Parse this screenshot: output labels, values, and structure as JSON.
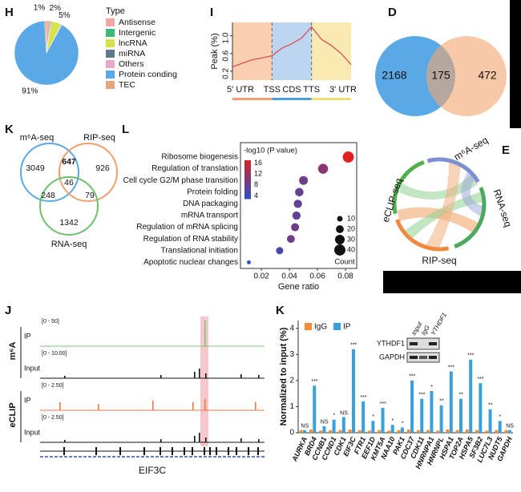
{
  "chart_data": [
    {
      "type": "pie",
      "label": "H",
      "legend_title": "Type",
      "categories": [
        "Antisense",
        "Intergenic",
        "lncRNA",
        "miRNA",
        "Others",
        "Protein conding",
        "TEC"
      ],
      "values": [
        2,
        0.5,
        5,
        0.3,
        0.2,
        91,
        1
      ],
      "value_labels": [
        "2%",
        null,
        "5%",
        null,
        null,
        "91%",
        "1%"
      ],
      "colors": [
        "#f2a7a7",
        "#3cb878",
        "#d6e24a",
        "#5f7a8c",
        "#e6a9c6",
        "#5aa9e6",
        "#e3a57e"
      ]
    },
    {
      "type": "line",
      "label": "I",
      "y_label": "Peak (%)",
      "x": [
        0,
        0.25,
        0.5,
        0.75,
        1,
        1.25,
        1.5,
        1.75,
        2,
        2.25,
        2.5,
        2.75,
        3
      ],
      "values": [
        0.3,
        0.38,
        0.46,
        0.5,
        0.55,
        0.72,
        0.82,
        0.95,
        1.2,
        0.92,
        0.78,
        0.6,
        0.35
      ],
      "color": "#e04050",
      "xlim": [
        0,
        3
      ],
      "xticks": [
        {
          "value": 1,
          "label": "TSS"
        },
        {
          "value": 2,
          "label": "TTS"
        }
      ],
      "ylim": [
        0,
        1.3
      ],
      "yticks": [
        0.2,
        0.6,
        {
          "value": 1,
          "label": "1.0"
        }
      ],
      "regions": [
        {
          "name": "5' UTR",
          "start": 0,
          "end": 1,
          "color": "#f9cfb0",
          "bar_color": "#f4a070"
        },
        {
          "name": "CDS",
          "start": 1,
          "end": 2,
          "color": "#bcd6f0",
          "bar_color": "#4a9fe0"
        },
        {
          "name": "3' UTR",
          "start": 2,
          "end": 3,
          "color": "#f8eab0",
          "bar_color": "#f0e070"
        }
      ]
    },
    {
      "type": "venn2",
      "label": "D",
      "values": [
        2168,
        175,
        472
      ],
      "colors": [
        "#5aa9e6",
        "#f2a56e"
      ]
    },
    {
      "type": "venn3",
      "label": "K",
      "sets": [
        "m⁶A-seq",
        "RIP-seq",
        "RNA-seq"
      ],
      "set_colors": [
        "#5aa9e6",
        "#f0a070",
        "#6cc06c"
      ],
      "values": [
        3049,
        926,
        1342,
        647,
        248,
        79,
        46
      ],
      "colors": [
        "#111",
        "#111",
        "#111",
        "#e03030",
        "#111",
        "#111",
        "#111"
      ]
    },
    {
      "type": "dot",
      "label": "L",
      "x_label": "Gene ratio",
      "color_title": "-log10 (P value)",
      "size_title": "Count",
      "categories": [
        "Ribosome biogenesis",
        "Regulation of translation",
        "Cell cycle G2/M phase transition",
        "Protein folding",
        "DNA packaging",
        "mRNA transport",
        "Regulation of mRNA splicing",
        "Regulation of RNA stability",
        "Translational initiation",
        "Apoptotic nuclear changes"
      ],
      "values": [
        0.082,
        0.064,
        0.05,
        0.047,
        0.046,
        0.045,
        0.044,
        0.041,
        0.033,
        0.011
      ],
      "pvalues": [
        17,
        10,
        8,
        7,
        7,
        7,
        8,
        8,
        5,
        3
      ],
      "counts": [
        40,
        32,
        25,
        23,
        22,
        22,
        21,
        20,
        17,
        5
      ],
      "xlim": [
        0.005,
        0.088
      ],
      "xticks": [
        0.02,
        0.04,
        0.06,
        0.08
      ],
      "color_lim": [
        3,
        17
      ],
      "color_ticks": [
        16,
        12,
        8,
        4
      ],
      "color_low": "#2f4fc0",
      "color_high": "#e02020",
      "size_ticks": [
        10,
        20,
        30,
        40
      ]
    },
    {
      "type": "chord",
      "label": "E",
      "nodes": [
        {
          "name": "m⁶A-seq",
          "color": "#7d8fd0"
        },
        {
          "name": "RNA-seq",
          "color": "#4aa860"
        },
        {
          "name": "RIP-seq",
          "color": "#f08a40"
        },
        {
          "name": "eCLIP-seq",
          "color": "#50b050"
        }
      ]
    },
    {
      "type": "tracks",
      "label": "J",
      "gene": "EIF3C",
      "groups": [
        {
          "name": "m⁶A",
          "tracks": [
            {
              "name": "IP",
              "range": "[0 - 50]",
              "color": "#7cc47c"
            },
            {
              "name": "Input",
              "range": "[0 - 10.00]",
              "color": "#111"
            }
          ]
        },
        {
          "name": "eCLIP",
          "tracks": [
            {
              "name": "IP",
              "range": "[0 - 2.50]",
              "color": "#f07840"
            },
            {
              "name": "Input",
              "range": "[0 - 2.50]",
              "color": "#111"
            }
          ]
        }
      ]
    },
    {
      "type": "bar",
      "label": "K",
      "y_label": "Normalized to input (%)",
      "categories": [
        "AURKA",
        "BRD4",
        "CCNB1",
        "CCND1",
        "CDK1",
        "EIF3C",
        "FTR1",
        "EEF1D",
        "KMT5A",
        "NAA10",
        "PAK1",
        "CDC37",
        "CDK11",
        "HNRNPA1",
        "HNRNPL",
        "HSPA1",
        "TOP2A",
        "HSPA5",
        "SF3B2",
        "LUC7L3",
        "NUDT5",
        "GAPDH"
      ],
      "series": [
        {
          "name": "IgG",
          "color": "#f28c38",
          "values": [
            0.1,
            0.12,
            0.08,
            0.1,
            0.1,
            0.12,
            0.1,
            0.08,
            0.1,
            0.08,
            0.1,
            0.12,
            0.1,
            0.1,
            0.08,
            0.12,
            0.1,
            0.12,
            0.1,
            0.08,
            0.1,
            0.1
          ]
        },
        {
          "name": "IP",
          "color": "#3aa0dc",
          "values": [
            0.1,
            1.8,
            0.25,
            0.5,
            0.6,
            3.2,
            1.2,
            0.45,
            0.95,
            0.3,
            0.2,
            2.0,
            1.3,
            1.6,
            1.05,
            2.35,
            1.3,
            2.8,
            1.9,
            0.9,
            0.45,
            0.1
          ]
        }
      ],
      "significance": [
        "NS",
        "***",
        "NS",
        "*",
        "NS",
        "***",
        "***",
        "*",
        "***",
        "*",
        "*",
        "***",
        "***",
        "*",
        "**",
        "***",
        "**",
        "***",
        "***",
        "**",
        "*",
        "NS"
      ],
      "ylim": [
        0,
        4.3
      ],
      "yticks": [
        0,
        1,
        2,
        3,
        4
      ],
      "inset": {
        "columns": [
          "Input",
          "IgG",
          "YTHDF1"
        ],
        "rows": [
          "YTHDF1",
          "GAPDH"
        ]
      }
    }
  ]
}
